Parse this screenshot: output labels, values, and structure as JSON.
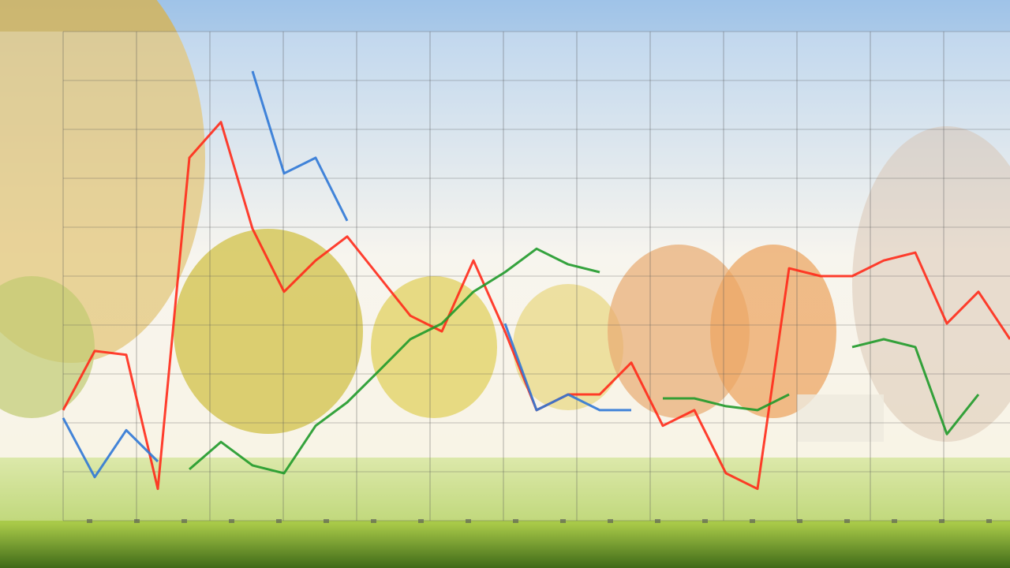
{
  "chart_data": {
    "type": "line",
    "x": [
      0,
      1,
      2,
      3,
      4,
      5,
      6,
      7,
      8,
      9,
      10,
      11,
      12,
      13,
      14,
      15,
      16,
      17,
      18,
      19,
      20,
      21,
      22,
      23,
      24,
      25,
      26,
      27,
      28,
      29,
      30
    ],
    "xlim": [
      0,
      30
    ],
    "ylim": [
      0,
      100
    ],
    "grid": true,
    "series": [
      {
        "color": "#ff2a1a",
        "values": [
          22.6,
          34.7,
          33.9,
          6.5,
          74.2,
          81.5,
          59.7,
          46.8,
          53.2,
          58.1,
          50.0,
          41.9,
          38.7,
          53.2,
          38.7,
          22.6,
          25.8,
          25.8,
          32.3,
          19.4,
          22.6,
          9.7,
          6.5,
          51.6,
          50.0,
          50.0,
          53.2,
          54.8,
          40.3,
          46.8,
          37.1
        ]
      },
      {
        "color": "#2f78d6",
        "values": [
          21.0,
          8.9,
          18.5,
          12.1,
          null,
          null,
          91.9,
          71.0,
          74.2,
          61.3,
          null,
          null,
          null,
          null,
          40.3,
          22.6,
          25.8,
          22.6,
          22.6,
          null,
          null,
          null,
          null,
          null,
          null,
          null,
          null,
          null,
          null,
          null,
          null
        ]
      },
      {
        "color": "#1f9a2a",
        "values": [
          null,
          null,
          null,
          null,
          10.5,
          16.1,
          11.3,
          9.7,
          19.4,
          24.2,
          30.6,
          37.1,
          40.3,
          46.8,
          50.8,
          55.6,
          52.4,
          50.8,
          null,
          25.0,
          25.0,
          23.4,
          22.6,
          25.8,
          null,
          35.5,
          37.1,
          35.5,
          17.7,
          25.8,
          null
        ]
      }
    ]
  }
}
